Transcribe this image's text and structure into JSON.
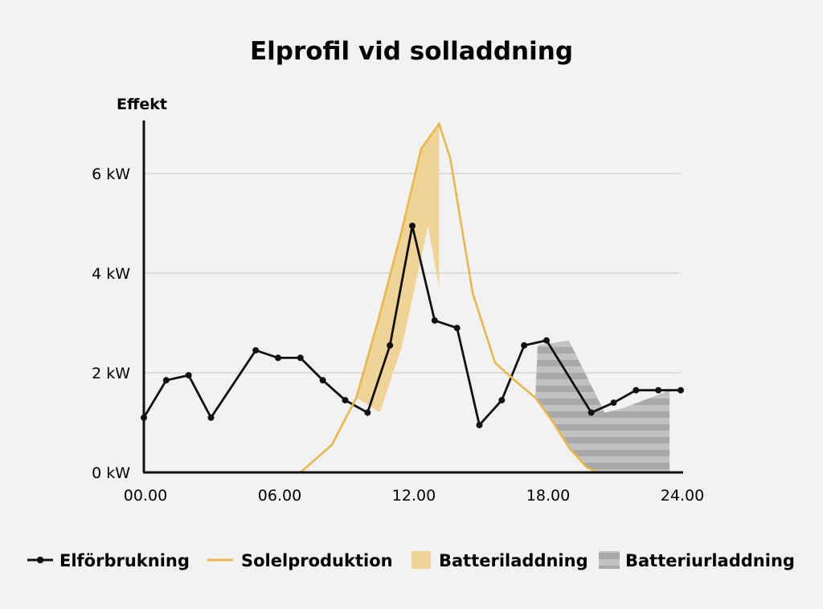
{
  "chart_data": {
    "type": "line",
    "title": "Elprofil vid solladdning",
    "ylabel": "Effekt",
    "xlabel": "",
    "xlim": [
      0,
      24
    ],
    "ylim": [
      0,
      7
    ],
    "x_ticks": [
      {
        "value": 0,
        "label": "00.00"
      },
      {
        "value": 6,
        "label": "06.00"
      },
      {
        "value": 12,
        "label": "12.00"
      },
      {
        "value": 18,
        "label": "18.00"
      },
      {
        "value": 24,
        "label": "24.00"
      }
    ],
    "y_ticks": [
      {
        "value": 0,
        "label": "0 kW"
      },
      {
        "value": 2,
        "label": "2 kW"
      },
      {
        "value": 4,
        "label": "4 kW"
      },
      {
        "value": 6,
        "label": "6 kW"
      }
    ],
    "grid": "horizontal",
    "legend_position": "bottom",
    "series": [
      {
        "name": "Elförbrukning",
        "kind": "line-markers",
        "color": "#111111",
        "x": [
          0,
          1,
          2,
          3,
          5,
          6,
          7,
          8,
          9,
          10,
          11,
          12,
          13,
          14,
          15,
          16,
          17,
          18,
          20,
          21,
          22,
          23,
          24
        ],
        "y": [
          1.1,
          1.85,
          1.95,
          1.1,
          2.45,
          2.3,
          2.3,
          1.85,
          1.45,
          1.2,
          2.55,
          4.95,
          3.05,
          2.9,
          0.95,
          1.45,
          2.55,
          2.65,
          1.2,
          1.4,
          1.65,
          1.65,
          1.65
        ]
      },
      {
        "name": "Solelproduktion",
        "kind": "line",
        "color": "#e8b84a",
        "x": [
          7,
          8.4,
          9.5,
          10.5,
          11.5,
          12.4,
          13.2,
          13.7,
          14.7,
          15.7,
          16.7,
          17.5,
          18.3,
          19,
          19.8,
          20.3
        ],
        "y": [
          0,
          0.55,
          1.5,
          3.1,
          4.8,
          6.5,
          7,
          6.3,
          3.6,
          2.2,
          1.8,
          1.5,
          1,
          0.5,
          0.1,
          0
        ]
      },
      {
        "name": "Batteriladdning",
        "kind": "area",
        "color": "#f0d497",
        "x": [
          9.5,
          10.5,
          11.5,
          12.4,
          13.2,
          13.2,
          12.7,
          11.55,
          10.55
        ],
        "y": [
          1.5,
          3.1,
          4.8,
          6.5,
          7,
          3.7,
          4.95,
          2.55,
          1.2
        ]
      },
      {
        "name": "Batteriurladdning",
        "kind": "area-striped",
        "color": "#a9a9a9",
        "x": [
          17.5,
          18.3,
          19,
          19.8,
          20.3,
          23.5,
          23.5,
          21.5,
          20.6,
          19,
          17.6
        ],
        "y": [
          1.5,
          1,
          0.5,
          0.1,
          0,
          0,
          1.65,
          1.3,
          1.2,
          2.65,
          2.55
        ]
      }
    ]
  }
}
